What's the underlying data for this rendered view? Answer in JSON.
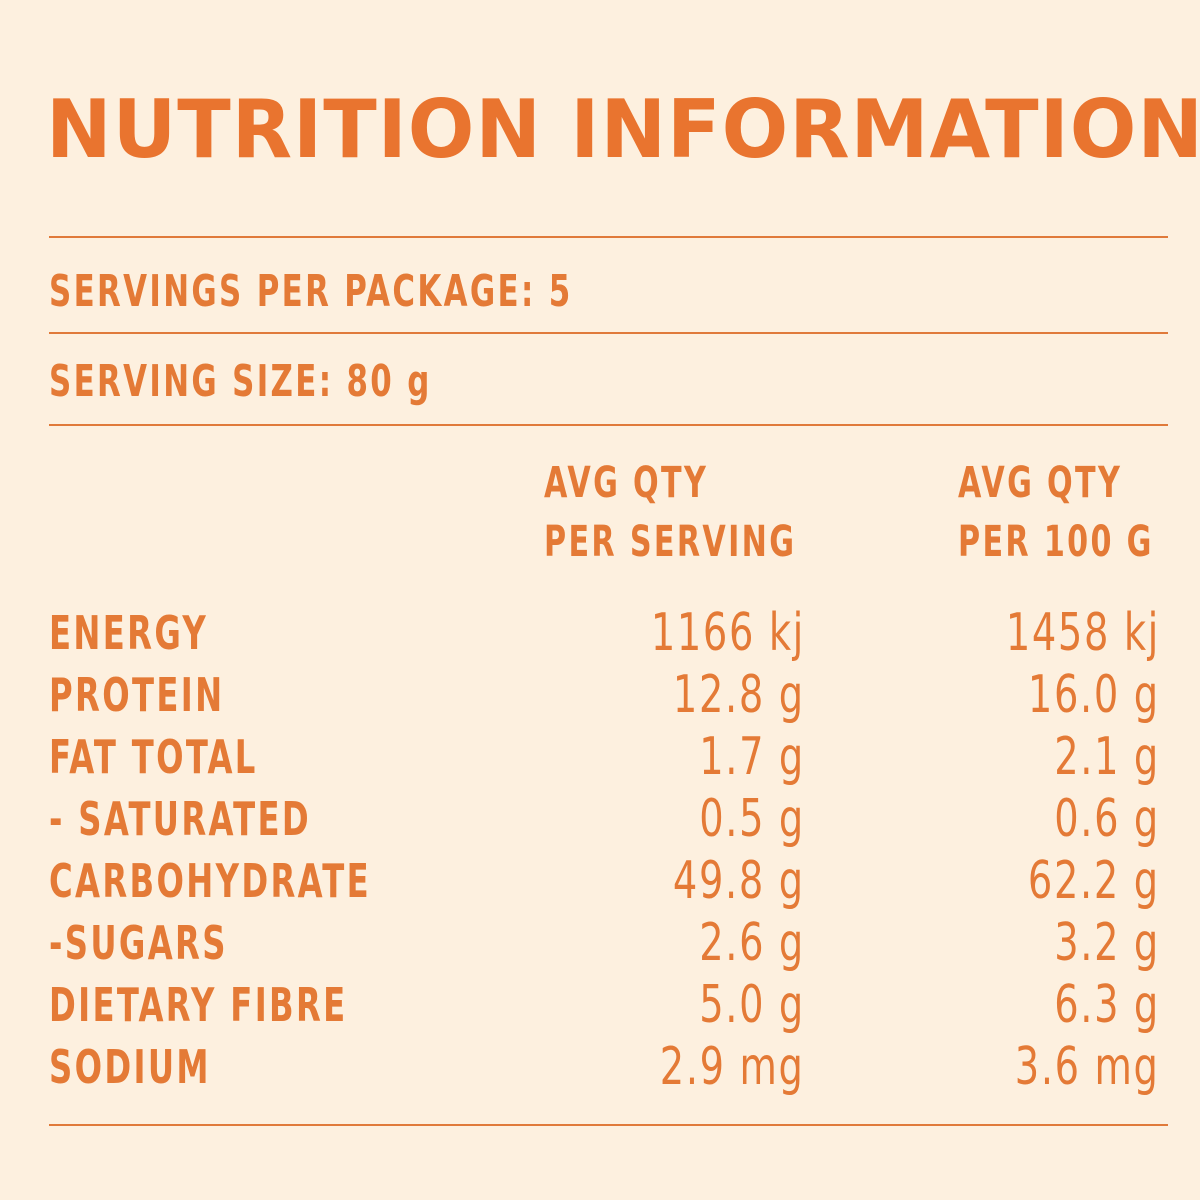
{
  "title": "NUTRITION INFORMATION",
  "servings_per_package": "SERVINGS PER PACKAGE: 5",
  "serving_size": "SERVING SIZE: 80 g",
  "columns": {
    "per_serving": [
      "AVG QTY",
      "PER SERVING"
    ],
    "per_100g": [
      "AVG QTY",
      "PER 100 G"
    ]
  },
  "rows": [
    {
      "name": "ENERGY",
      "per_serving": "1166 kj",
      "per_100g": "1458 kj"
    },
    {
      "name": "PROTEIN",
      "per_serving": "12.8 g",
      "per_100g": "16.0 g"
    },
    {
      "name": "FAT TOTAL",
      "per_serving": "1.7 g",
      "per_100g": "2.1 g"
    },
    {
      "name": "- SATURATED",
      "per_serving": "0.5 g",
      "per_100g": "0.6 g"
    },
    {
      "name": "CARBOHYDRATE",
      "per_serving": "49.8 g",
      "per_100g": "62.2 g"
    },
    {
      "name": "-SUGARS",
      "per_serving": "2.6 g",
      "per_100g": "3.2 g"
    },
    {
      "name": "DIETARY FIBRE",
      "per_serving": "5.0 g",
      "per_100g": "6.3 g"
    },
    {
      "name": "SODIUM",
      "per_serving": "2.9 mg",
      "per_100g": "3.6 mg"
    }
  ],
  "colors": {
    "background": "#fdf0df",
    "accent": "#e9742f"
  }
}
